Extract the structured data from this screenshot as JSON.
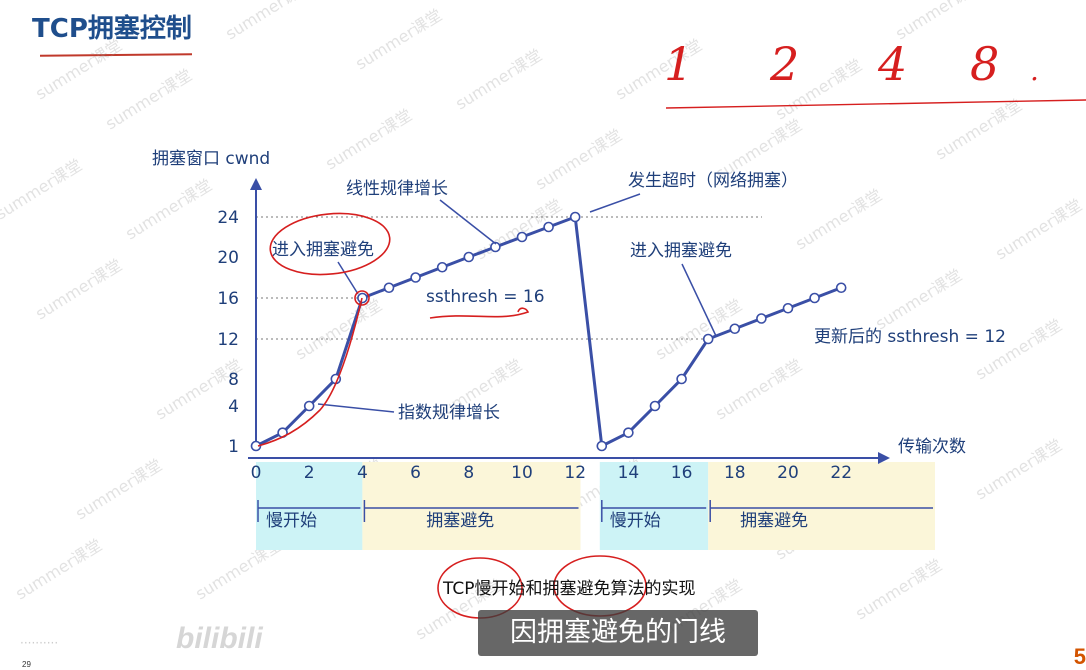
{
  "slide": {
    "title": "TCP拥塞控制",
    "caption": "TCP慢开始和拥塞避免算法的实现",
    "subtitle": "因拥塞避免的门线",
    "page_number": "29",
    "watermark": "summer课堂"
  },
  "colors": {
    "title": "#1f4e8c",
    "line": "#3a4fa6",
    "axis": "#3a4fa6",
    "slow_start_bg": "#cdf3f6",
    "congestion_avoid_bg": "#fbf6d9",
    "annotation_red": "#d61f1f"
  },
  "chart_data": {
    "type": "line",
    "ylabel": "拥塞窗口 cwnd",
    "xlabel": "传输次数",
    "x_ticks": [
      0,
      2,
      4,
      6,
      8,
      10,
      12,
      14,
      16,
      18,
      20,
      22
    ],
    "y_ticks": [
      1,
      4,
      8,
      12,
      16,
      20,
      24
    ],
    "series": [
      {
        "points": [
          [
            0,
            1
          ],
          [
            1,
            2
          ],
          [
            2,
            4
          ],
          [
            3,
            8
          ],
          [
            4,
            16
          ],
          [
            5,
            17
          ],
          [
            6,
            18
          ],
          [
            7,
            19
          ],
          [
            8,
            20
          ],
          [
            9,
            21
          ],
          [
            10,
            22
          ],
          [
            11,
            23
          ],
          [
            12,
            24
          ]
        ]
      },
      {
        "points": [
          [
            13,
            1
          ],
          [
            14,
            2
          ],
          [
            15,
            4
          ],
          [
            16,
            8
          ],
          [
            17,
            12
          ],
          [
            18,
            13
          ],
          [
            19,
            14
          ],
          [
            20,
            15
          ],
          [
            21,
            16
          ],
          [
            22,
            17
          ]
        ]
      }
    ],
    "dashed_lines": [
      24,
      16,
      12
    ],
    "annotations": {
      "enter_ca_1": "进入拥塞避免",
      "linear_growth": "线性规律增长",
      "timeout": "发生超时（网络拥塞）",
      "ssthresh_16": "ssthresh = 16",
      "enter_ca_2": "进入拥塞避免",
      "new_ssthresh": "更新后的 ssthresh = 12",
      "exp_growth": "指数规律增长"
    },
    "phases": [
      {
        "label": "慢开始",
        "type": "slow_start",
        "from": 0,
        "to": 4
      },
      {
        "label": "拥塞避免",
        "type": "congestion_avoid",
        "from": 4,
        "to": 12
      },
      {
        "label": "慢开始",
        "type": "slow_start",
        "from": 13,
        "to": 17
      },
      {
        "label": "拥塞避免",
        "type": "congestion_avoid",
        "from": 17,
        "to": 22
      }
    ]
  },
  "handwriting": [
    "1",
    "2",
    "4",
    "8",
    "."
  ]
}
